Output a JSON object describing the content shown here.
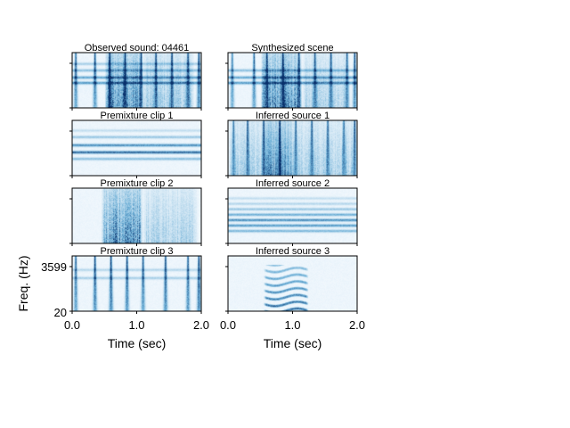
{
  "colors": {
    "cmap_low": "#f7fbff",
    "cmap_mid": "#6baed6",
    "cmap_high": "#08306b",
    "axes": "#000000",
    "text": "#000000"
  },
  "chart_data": {
    "type": "heatmap",
    "colormap": "Blues",
    "grid": false,
    "xlabel": "Time (sec)",
    "ylabel": "Freq. (Hz)",
    "xlim": [
      0.0,
      2.0
    ],
    "xticks": [
      "0.0",
      "1.0",
      "2.0"
    ],
    "yticks": [
      "20",
      "3599"
    ],
    "panels": [
      {
        "title": "Observed sound: 04461",
        "events": [
          {
            "kind": "tone",
            "freq": 0.45,
            "t0": 0.0,
            "t1": 2.0,
            "level": 0.55
          },
          {
            "kind": "tone",
            "freq": 0.55,
            "t0": 0.0,
            "t1": 2.0,
            "level": 0.5
          },
          {
            "kind": "tone",
            "freq": 0.68,
            "t0": 0.0,
            "t1": 2.0,
            "level": 0.35
          },
          {
            "kind": "tone",
            "freq": 0.8,
            "t0": 0.0,
            "t1": 2.0,
            "level": 0.25
          },
          {
            "kind": "burst",
            "t0": 0.5,
            "t1": 1.1,
            "level": 0.85
          },
          {
            "kind": "burst",
            "t0": 1.1,
            "t1": 1.9,
            "level": 0.4
          },
          {
            "kind": "click",
            "t": 0.05,
            "level": 0.7
          },
          {
            "kind": "click",
            "t": 0.35,
            "level": 0.75
          },
          {
            "kind": "click",
            "t": 0.58,
            "level": 0.8
          },
          {
            "kind": "click",
            "t": 0.82,
            "level": 0.8
          },
          {
            "kind": "click",
            "t": 1.07,
            "level": 0.75
          },
          {
            "kind": "click",
            "t": 1.3,
            "level": 0.7
          },
          {
            "kind": "click",
            "t": 1.55,
            "level": 0.75
          },
          {
            "kind": "click",
            "t": 1.8,
            "level": 0.7
          },
          {
            "kind": "click",
            "t": 1.97,
            "level": 0.85
          }
        ]
      },
      {
        "title": "Synthesized scene",
        "events": [
          {
            "kind": "tone",
            "freq": 0.45,
            "t0": 0.0,
            "t1": 2.0,
            "level": 0.55
          },
          {
            "kind": "tone",
            "freq": 0.55,
            "t0": 0.0,
            "t1": 2.0,
            "level": 0.5
          },
          {
            "kind": "tone",
            "freq": 0.68,
            "t0": 0.0,
            "t1": 2.0,
            "level": 0.35
          },
          {
            "kind": "burst",
            "t0": 0.5,
            "t1": 1.15,
            "level": 0.85
          },
          {
            "kind": "burst",
            "t0": 1.15,
            "t1": 1.9,
            "level": 0.35
          },
          {
            "kind": "click",
            "t": 0.06,
            "level": 0.6
          },
          {
            "kind": "click",
            "t": 0.4,
            "level": 0.7
          },
          {
            "kind": "click",
            "t": 0.6,
            "level": 0.75
          },
          {
            "kind": "click",
            "t": 0.85,
            "level": 0.75
          },
          {
            "kind": "click",
            "t": 1.1,
            "level": 0.7
          },
          {
            "kind": "click",
            "t": 1.35,
            "level": 0.7
          },
          {
            "kind": "click",
            "t": 1.6,
            "level": 0.7
          },
          {
            "kind": "click",
            "t": 1.85,
            "level": 0.65
          },
          {
            "kind": "click",
            "t": 1.97,
            "level": 0.8
          }
        ]
      },
      {
        "title": "Premixture clip 1",
        "events": [
          {
            "kind": "tone",
            "freq": 0.3,
            "t0": 0.0,
            "t1": 2.0,
            "level": 0.35
          },
          {
            "kind": "tone",
            "freq": 0.42,
            "t0": 0.0,
            "t1": 2.0,
            "level": 0.75
          },
          {
            "kind": "tone",
            "freq": 0.55,
            "t0": 0.0,
            "t1": 2.0,
            "level": 0.6
          },
          {
            "kind": "tone",
            "freq": 0.7,
            "t0": 0.0,
            "t1": 2.0,
            "level": 0.3
          },
          {
            "kind": "tone",
            "freq": 0.82,
            "t0": 0.0,
            "t1": 2.0,
            "level": 0.15
          }
        ]
      },
      {
        "title": "Inferred source 1",
        "events": [
          {
            "kind": "burst",
            "t0": 0.0,
            "t1": 2.0,
            "level": 0.35
          },
          {
            "kind": "burst",
            "t0": 0.55,
            "t1": 1.0,
            "level": 0.55
          },
          {
            "kind": "click",
            "t": 0.08,
            "level": 0.55
          },
          {
            "kind": "click",
            "t": 0.3,
            "level": 0.7
          },
          {
            "kind": "click",
            "t": 0.55,
            "level": 0.7
          },
          {
            "kind": "click",
            "t": 0.8,
            "level": 0.7
          },
          {
            "kind": "click",
            "t": 1.05,
            "level": 0.65
          },
          {
            "kind": "click",
            "t": 1.3,
            "level": 0.65
          },
          {
            "kind": "click",
            "t": 1.55,
            "level": 0.65
          },
          {
            "kind": "click",
            "t": 1.8,
            "level": 0.6
          },
          {
            "kind": "click",
            "t": 1.97,
            "level": 0.75
          }
        ]
      },
      {
        "title": "Premixture clip 2",
        "events": [
          {
            "kind": "burst",
            "t0": 0.45,
            "t1": 1.1,
            "level": 0.9
          },
          {
            "kind": "burst",
            "t0": 1.1,
            "t1": 1.95,
            "level": 0.35
          }
        ]
      },
      {
        "title": "Inferred source 2",
        "events": [
          {
            "kind": "tone",
            "freq": 0.22,
            "t0": 0.0,
            "t1": 2.0,
            "level": 0.4
          },
          {
            "kind": "tone",
            "freq": 0.32,
            "t0": 0.0,
            "t1": 2.0,
            "level": 0.55
          },
          {
            "kind": "tone",
            "freq": 0.42,
            "t0": 0.0,
            "t1": 2.0,
            "level": 0.6
          },
          {
            "kind": "tone",
            "freq": 0.52,
            "t0": 0.0,
            "t1": 2.0,
            "level": 0.45
          },
          {
            "kind": "tone",
            "freq": 0.62,
            "t0": 0.0,
            "t1": 2.0,
            "level": 0.3
          },
          {
            "kind": "tone",
            "freq": 0.72,
            "t0": 0.0,
            "t1": 2.0,
            "level": 0.2
          },
          {
            "kind": "tone",
            "freq": 0.82,
            "t0": 0.0,
            "t1": 2.0,
            "level": 0.15
          }
        ]
      },
      {
        "title": "Premixture clip 3",
        "events": [
          {
            "kind": "tone",
            "freq": 0.6,
            "t0": 0.0,
            "t1": 2.0,
            "level": 0.25
          },
          {
            "kind": "tone",
            "freq": 0.75,
            "t0": 0.0,
            "t1": 2.0,
            "level": 0.2
          },
          {
            "kind": "click",
            "t": 0.05,
            "level": 0.7
          },
          {
            "kind": "click",
            "t": 0.35,
            "level": 0.8
          },
          {
            "kind": "click",
            "t": 0.6,
            "level": 0.85
          },
          {
            "kind": "click",
            "t": 0.85,
            "level": 0.8
          },
          {
            "kind": "click",
            "t": 1.1,
            "level": 0.75
          },
          {
            "kind": "click",
            "t": 1.45,
            "level": 0.8
          },
          {
            "kind": "click",
            "t": 1.8,
            "level": 0.75
          },
          {
            "kind": "click",
            "t": 1.97,
            "level": 0.85
          }
        ]
      },
      {
        "title": "Inferred source 3",
        "events": [
          {
            "kind": "harmonic",
            "t0": 0.55,
            "t1": 1.25,
            "level": 0.8,
            "wobble": 0.04
          }
        ]
      }
    ]
  }
}
